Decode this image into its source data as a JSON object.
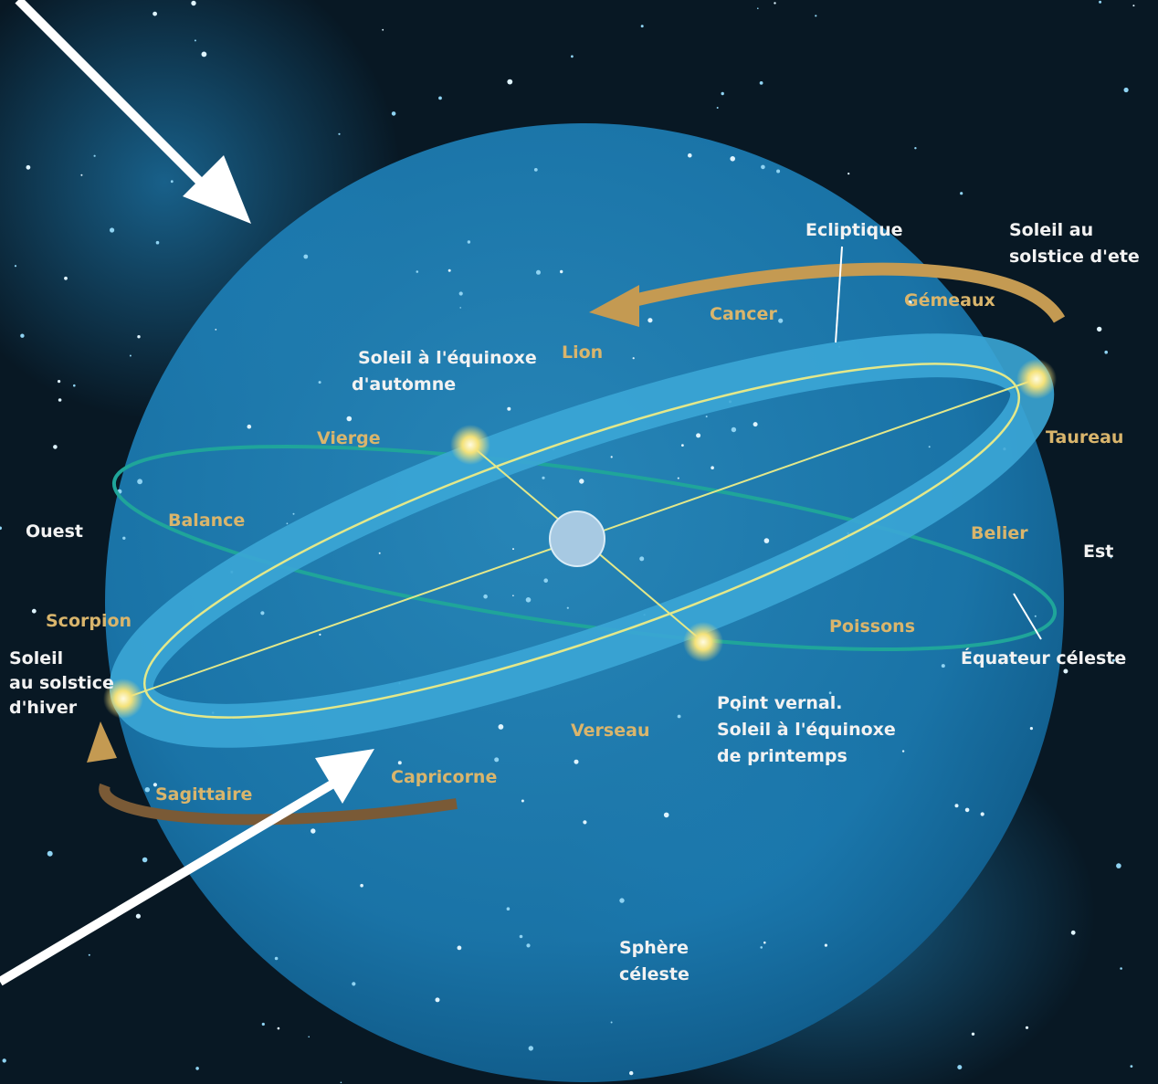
{
  "labels": {
    "ecliptic": "Ecliptique",
    "summer_solstice": [
      "Soleil au",
      "solstice d'ete"
    ],
    "autumn_equinox": [
      "Soleil à l'équinoxe",
      "d'automne"
    ],
    "winter_solstice": [
      "Soleil",
      "au solstice",
      "d'hiver"
    ],
    "vernal_point": [
      "Point vernal.",
      "Soleil à l'équinoxe",
      "de printemps"
    ],
    "celestial_equator": "Équateur céleste",
    "celestial_sphere": [
      "Sphère",
      "céleste"
    ],
    "west": "Ouest",
    "east": "Est"
  },
  "zodiac": {
    "cancer": "Cancer",
    "gemini": "Gémeaux",
    "leo": "Lion",
    "virgo": "Vierge",
    "taurus": "Taureau",
    "libra": "Balance",
    "aries": "Belier",
    "scorpio": "Scorpion",
    "pisces": "Poissons",
    "aquarius": "Verseau",
    "capricorn": "Capricorne",
    "sagittarius": "Sagittaire"
  }
}
